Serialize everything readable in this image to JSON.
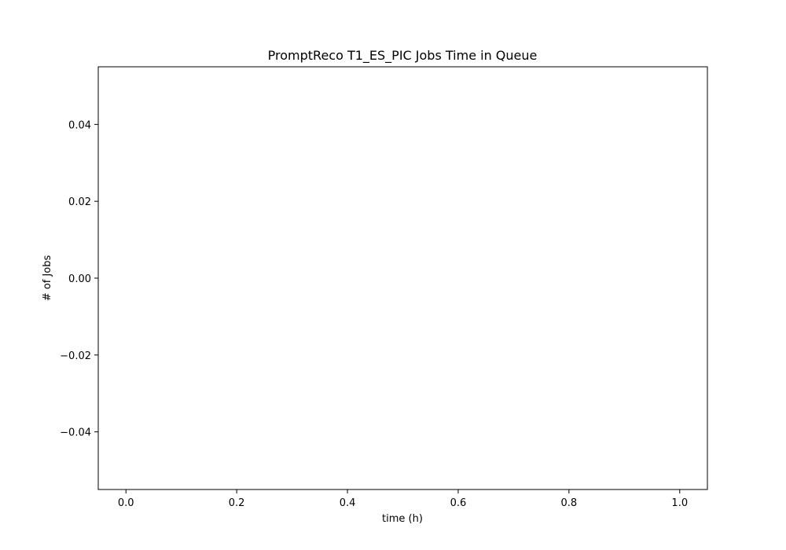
{
  "chart_data": {
    "type": "line",
    "title": "PromptReco T1_ES_PIC Jobs Time in Queue",
    "xlabel": "time (h)",
    "ylabel": "# of Jobs",
    "xlim": [
      -0.05,
      1.05
    ],
    "ylim": [
      -0.055,
      0.055
    ],
    "x_ticks": [
      0.0,
      0.2,
      0.4,
      0.6,
      0.8,
      1.0
    ],
    "x_tick_labels": [
      "0.0",
      "0.2",
      "0.4",
      "0.6",
      "0.8",
      "1.0"
    ],
    "y_ticks": [
      -0.04,
      -0.02,
      0.0,
      0.02,
      0.04
    ],
    "y_tick_labels": [
      "−0.04",
      "−0.02",
      "0.00",
      "0.02",
      "0.04"
    ],
    "series": [],
    "grid": false,
    "legend": "none"
  }
}
